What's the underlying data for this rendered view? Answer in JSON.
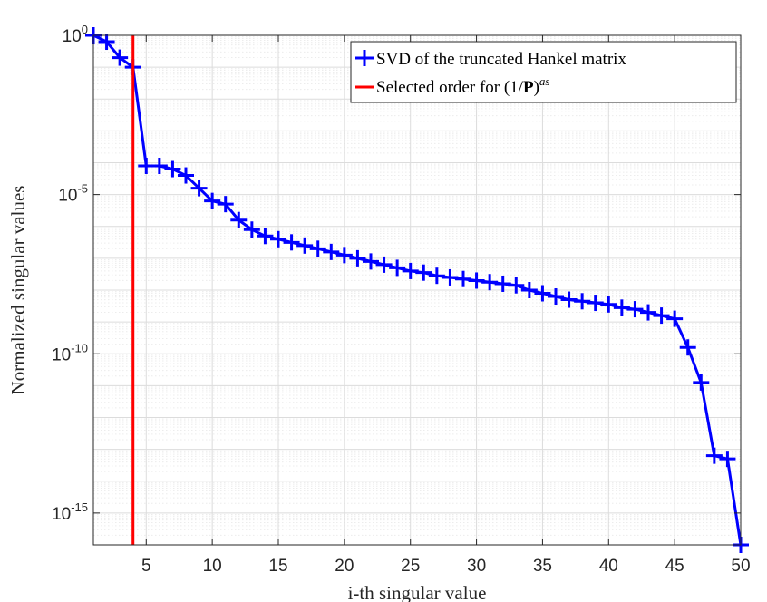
{
  "chart_data": {
    "type": "line",
    "xlabel": "i-th singular value",
    "ylabel": "Normalized singular values",
    "xlim": [
      1,
      50
    ],
    "ylim_log10": [
      -16,
      0
    ],
    "yscale": "log",
    "grid": true,
    "minor_grid": true,
    "x_ticks": [
      5,
      10,
      15,
      20,
      25,
      30,
      35,
      40,
      45,
      50
    ],
    "y_ticks": [
      {
        "base": "10",
        "exp": "0"
      },
      {
        "base": "10",
        "exp": "-5"
      },
      {
        "base": "10",
        "exp": "-10"
      },
      {
        "base": "10",
        "exp": "-15"
      }
    ],
    "y_tick_log10": [
      0,
      -5,
      -10,
      -15
    ],
    "legend_position": "top-right",
    "series": [
      {
        "name": "SVD of the truncated Hankel matrix",
        "color": "#0000ff",
        "marker": "plus",
        "x": [
          1,
          2,
          3,
          4,
          5,
          6,
          7,
          8,
          9,
          10,
          11,
          12,
          13,
          14,
          15,
          16,
          17,
          18,
          19,
          20,
          21,
          22,
          23,
          24,
          25,
          26,
          27,
          28,
          29,
          30,
          31,
          32,
          33,
          34,
          35,
          36,
          37,
          38,
          39,
          40,
          41,
          42,
          43,
          44,
          45,
          46,
          47,
          48,
          49,
          50
        ],
        "log10_values": [
          0,
          -0.2,
          -0.7,
          -1.0,
          -4.1,
          -4.1,
          -4.2,
          -4.4,
          -4.8,
          -5.2,
          -5.3,
          -5.8,
          -6.1,
          -6.3,
          -6.4,
          -6.5,
          -6.6,
          -6.7,
          -6.8,
          -6.9,
          -7.0,
          -7.1,
          -7.2,
          -7.3,
          -7.4,
          -7.45,
          -7.55,
          -7.6,
          -7.65,
          -7.7,
          -7.75,
          -7.8,
          -7.85,
          -8.0,
          -8.1,
          -8.2,
          -8.3,
          -8.35,
          -8.4,
          -8.45,
          -8.55,
          -8.6,
          -8.7,
          -8.8,
          -8.9,
          -9.8,
          -10.9,
          -13.2,
          -13.3,
          -16
        ]
      },
      {
        "name": "Selected order for (1/P)^as",
        "name_parts": {
          "pre": "Selected order for (1/",
          "bold": "P",
          "post": ")",
          "sup": "as"
        },
        "color": "#ff0000",
        "type": "vline",
        "x": 4
      }
    ]
  }
}
